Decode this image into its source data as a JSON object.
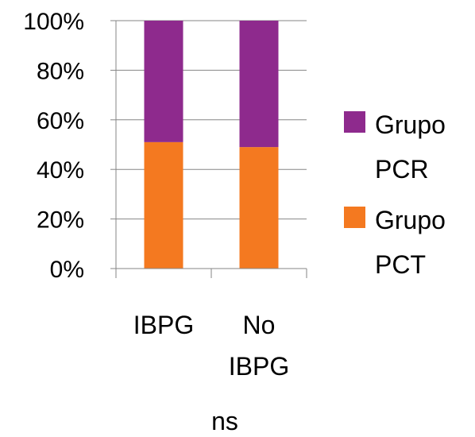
{
  "chart_data": {
    "type": "bar",
    "stacked": true,
    "percent": true,
    "categories": [
      [
        "IBPG"
      ],
      [
        "No",
        "IBPG"
      ]
    ],
    "series": [
      {
        "name": [
          "Grupo",
          "PCT"
        ],
        "values": [
          51,
          49
        ],
        "color": "#F47920"
      },
      {
        "name": [
          "Grupo",
          "PCR"
        ],
        "values": [
          49,
          51
        ],
        "color": "#8E2A8D"
      }
    ],
    "ylim": [
      0,
      100
    ],
    "yticks": [
      "0%",
      "20%",
      "40%",
      "60%",
      "80%",
      "100%"
    ],
    "grid": true,
    "legend_position": "right",
    "annotation": "ns"
  }
}
